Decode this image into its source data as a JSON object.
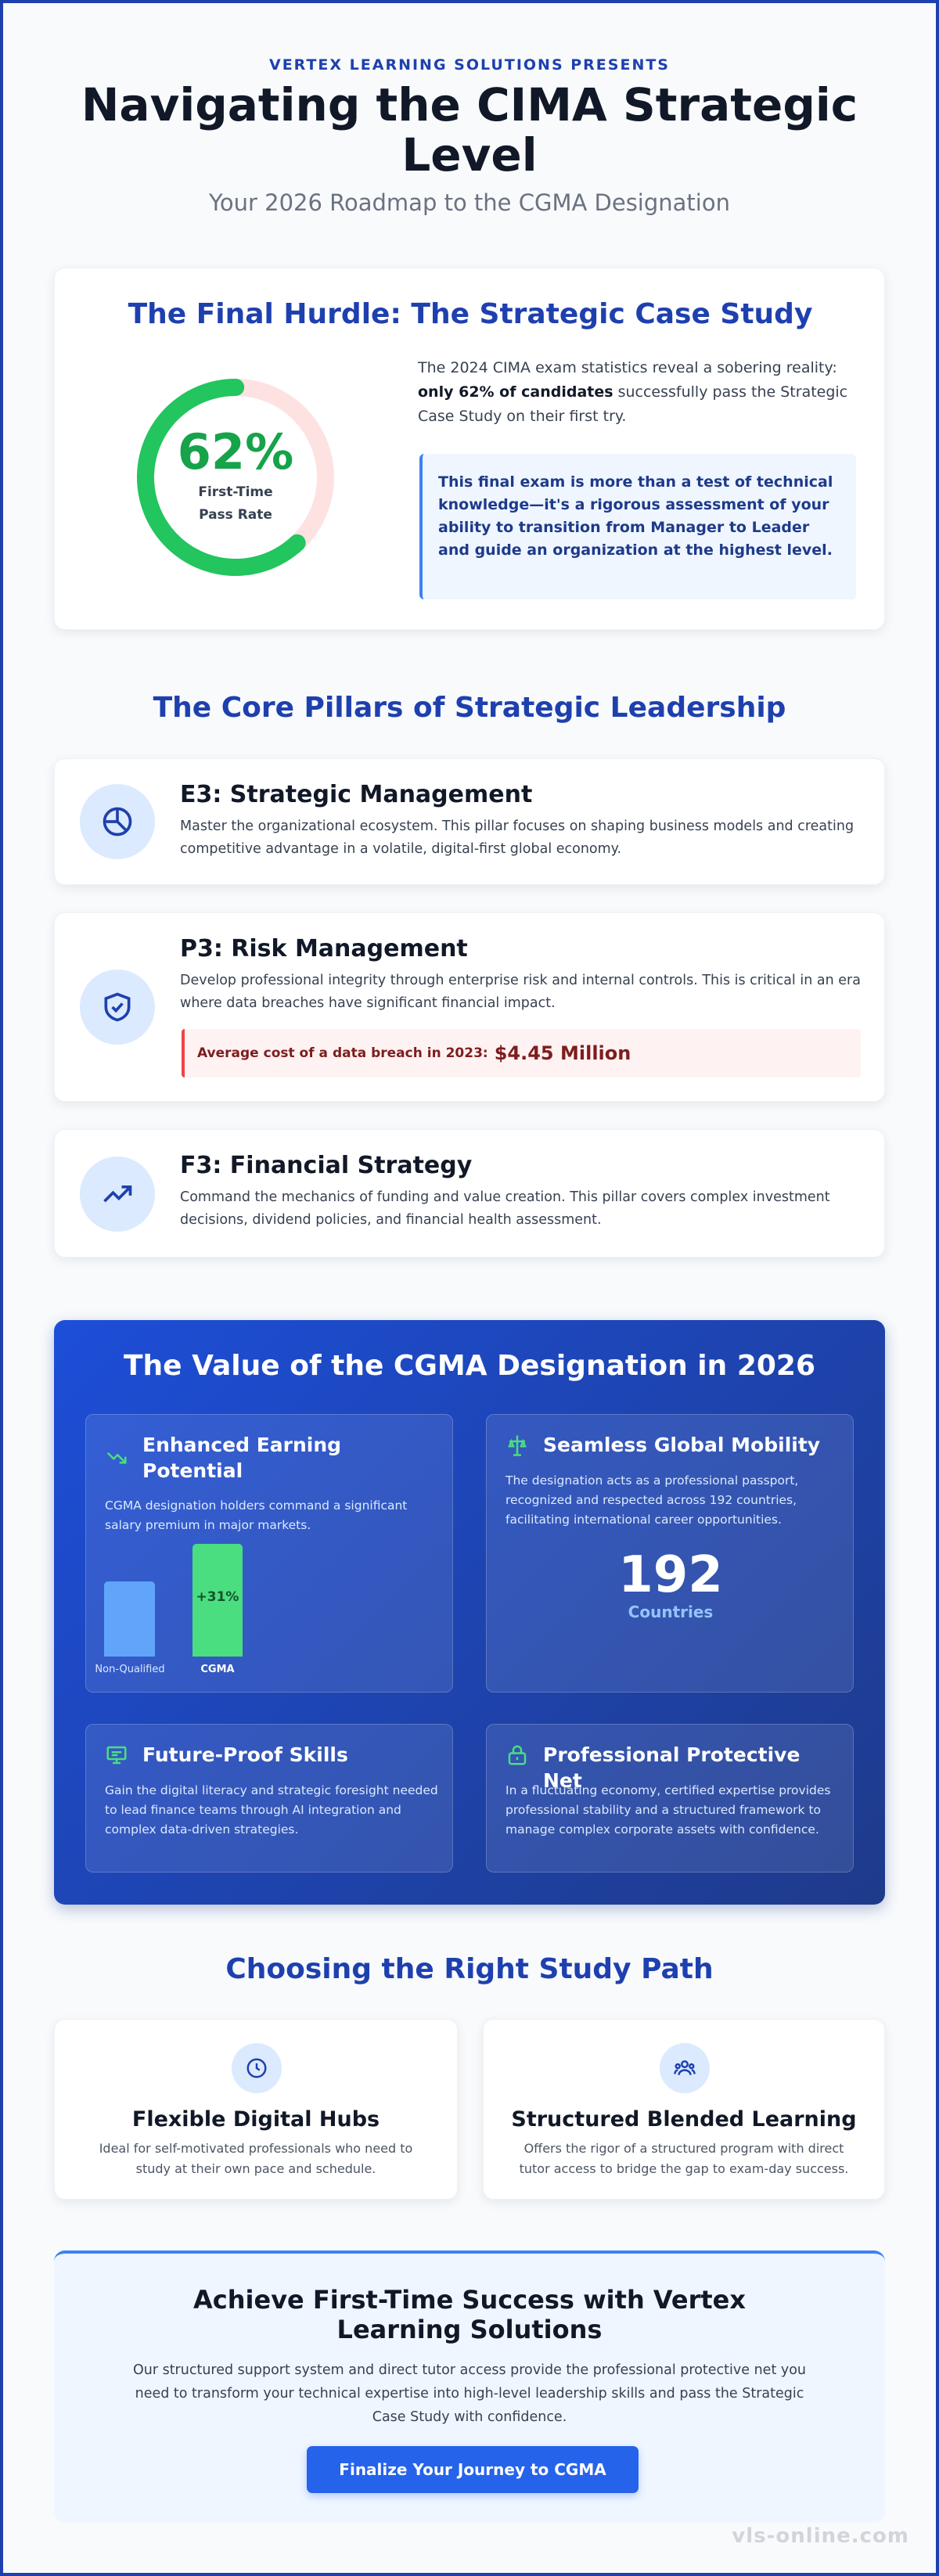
{
  "header": {
    "eyebrow": "VERTEX LEARNING SOLUTIONS PRESENTS",
    "title": "Navigating the CIMA Strategic Level",
    "subtitle": "Your 2026 Roadmap to the CGMA Designation"
  },
  "hurdle": {
    "title": "The Final Hurdle: The Strategic Case Study",
    "pass_rate": {
      "value": 62,
      "label": "62%"
    },
    "pass_rate_caption": "First-Time Pass Rate",
    "text_before": "The 2024 CIMA exam statistics reveal a sobering reality: ",
    "text_bold": "only 62% of candidates",
    "text_after": " successfully pass the Strategic Case Study on their first try.",
    "callout": "This final exam is more than a test of technical knowledge—it's a rigorous assessment of your ability to transition from Manager to Leader and guide an organization at the highest level."
  },
  "pillars": {
    "title": "The Core Pillars of Strategic Leadership",
    "items": [
      {
        "title": "E3: Strategic Management",
        "text": "Master the organizational ecosystem. This pillar focuses on shaping business models and creating competitive advantage in a volatile, digital-first global economy."
      },
      {
        "title": "P3: Risk Management",
        "text": "Develop professional integrity through enterprise risk and internal controls. This is critical in an era where data breaches have significant financial impact."
      },
      {
        "title": "F3: Financial Strategy",
        "text": "Command the mechanics of funding and value creation. This pillar covers complex investment decisions, dividend policies, and financial health assessment."
      }
    ],
    "breach_label": "Average cost of a data breach in 2023:",
    "breach_value": "$4.45 Million"
  },
  "value": {
    "title": "The Value of the CGMA Designation in 2026",
    "cards": [
      {
        "title": "Enhanced Earning Potential",
        "text": "CGMA designation holders command a significant salary premium in major markets."
      },
      {
        "title": "Seamless Global Mobility",
        "text": "The designation acts as a professional passport, recognized and respected across 192 countries, facilitating international career opportunities."
      },
      {
        "title": "Future-Proof Skills",
        "text": "Gain the digital literacy and strategic foresight needed to lead finance teams through AI integration and complex data-driven strategies."
      },
      {
        "title": "Professional Protective Net",
        "text": "In a fluctuating economy, certified expertise provides professional stability and a structured framework to manage complex corporate assets with confidence."
      }
    ],
    "bar_labels": [
      "Non-Qualified",
      "CGMA"
    ],
    "premium": "+31%",
    "countries_number": "192",
    "countries_label": "Countries"
  },
  "study": {
    "title": "Choosing the Right Study Path",
    "options": [
      {
        "title": "Flexible Digital Hubs",
        "text": "Ideal for self-motivated professionals who need to study at their own pace and schedule."
      },
      {
        "title": "Structured Blended Learning",
        "text": "Offers the rigor of a structured program with direct tutor access to bridge the gap to exam-day success."
      }
    ]
  },
  "cta": {
    "title": "Achieve First-Time Success with Vertex Learning Solutions",
    "text": "Our structured support system and direct tutor access provide the professional protective net you need to transform your technical expertise into high-level leadership skills and pass the Strategic Case Study with confidence.",
    "button": "Finalize Your Journey to CGMA"
  },
  "footer": {
    "watermark": "vls-online.com"
  }
}
